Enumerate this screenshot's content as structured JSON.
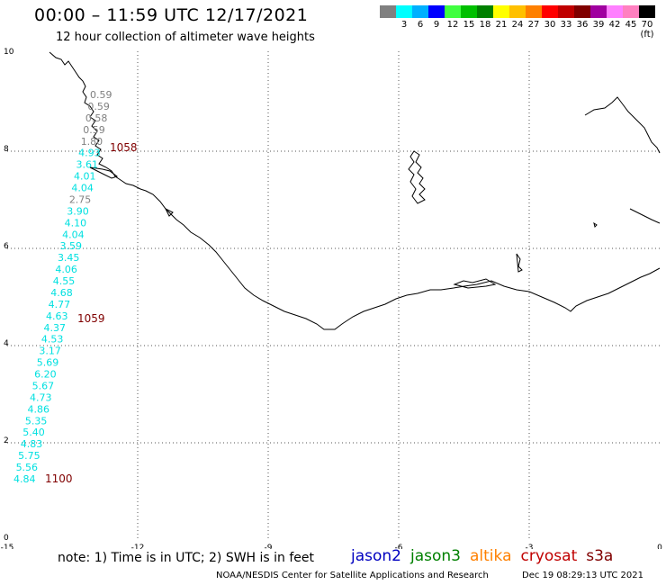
{
  "title": "00:00 – 11:59 UTC 12/17/2021",
  "subtitle": "12 hour collection of altimeter wave heights",
  "colorbar": {
    "colors": [
      "#808080",
      "#00ffff",
      "#00b0ff",
      "#0000ff",
      "#40ff40",
      "#00c000",
      "#008000",
      "#ffff00",
      "#ffc000",
      "#ff8000",
      "#ff0000",
      "#c00000",
      "#800000",
      "#a000a0",
      "#ff80ff",
      "#ff80c0",
      "#000000"
    ],
    "labels": [
      "",
      "3",
      "6",
      "9",
      "12",
      "15",
      "18",
      "21",
      "24",
      "27",
      "30",
      "33",
      "36",
      "39",
      "42",
      "45",
      "70 (ft)"
    ]
  },
  "axes": {
    "x_ticks": [
      "-15",
      "-12",
      "-9",
      "-6",
      "-3",
      "0"
    ],
    "y_ticks": [
      "0",
      "2",
      "4",
      "6",
      "8",
      "10"
    ]
  },
  "measurements": {
    "top_track": [
      {
        "value": "0.59",
        "color": "#808080"
      },
      {
        "value": "0.59",
        "color": "#808080"
      },
      {
        "value": "0.58",
        "color": "#808080"
      },
      {
        "value": "0.59",
        "color": "#808080"
      },
      {
        "value": "1.80",
        "color": "#808080"
      },
      {
        "value": "4.93",
        "color": "#00e0e0"
      },
      {
        "value": "3.61",
        "color": "#00e0e0"
      },
      {
        "value": "4.01",
        "color": "#00e0e0"
      },
      {
        "value": "4.04",
        "color": "#00e0e0"
      },
      {
        "value": "2.75",
        "color": "#808080"
      },
      {
        "value": "3.90",
        "color": "#00e0e0"
      },
      {
        "value": "4.10",
        "color": "#00e0e0"
      },
      {
        "value": "4.04",
        "color": "#00e0e0"
      },
      {
        "value": "3.59",
        "color": "#00e0e0"
      },
      {
        "value": "3.45",
        "color": "#00e0e0"
      },
      {
        "value": "4.06",
        "color": "#00e0e0"
      },
      {
        "value": "4.55",
        "color": "#00e0e0"
      },
      {
        "value": "4.68",
        "color": "#00e0e0"
      },
      {
        "value": "4.77",
        "color": "#00e0e0"
      },
      {
        "value": "4.63",
        "color": "#00e0e0"
      },
      {
        "value": "4.37",
        "color": "#00e0e0"
      },
      {
        "value": "4.53",
        "color": "#00e0e0"
      },
      {
        "value": "3.17",
        "color": "#00e0e0"
      },
      {
        "value": "5.69",
        "color": "#00e0e0"
      },
      {
        "value": "6.20",
        "color": "#00e0e0"
      },
      {
        "value": "5.67",
        "color": "#00e0e0"
      },
      {
        "value": "4.73",
        "color": "#00e0e0"
      },
      {
        "value": "4.86",
        "color": "#00e0e0"
      },
      {
        "value": "5.35",
        "color": "#00e0e0"
      },
      {
        "value": "5.40",
        "color": "#00e0e0"
      },
      {
        "value": "4.83",
        "color": "#00e0e0"
      },
      {
        "value": "5.75",
        "color": "#00e0e0"
      },
      {
        "value": "5.56",
        "color": "#00e0e0"
      },
      {
        "value": "4.84",
        "color": "#00e0e0"
      }
    ],
    "time_labels": [
      "1058",
      "1059",
      "1100"
    ],
    "time_color": "#800000"
  },
  "footer": {
    "note": "note: 1) Time is in UTC; 2) SWH is in feet",
    "satellites": [
      {
        "name": "jason2",
        "color": "#0000c0"
      },
      {
        "name": "jason3",
        "color": "#008000"
      },
      {
        "name": "altika",
        "color": "#ff8000"
      },
      {
        "name": "cryosat",
        "color": "#c00000"
      },
      {
        "name": "s3a",
        "color": "#800000"
      }
    ],
    "credit": "NOAA/NESDIS Center for Satellite Applications and Research",
    "timestamp": "Dec 19 08:29:13 UTC 2021"
  }
}
